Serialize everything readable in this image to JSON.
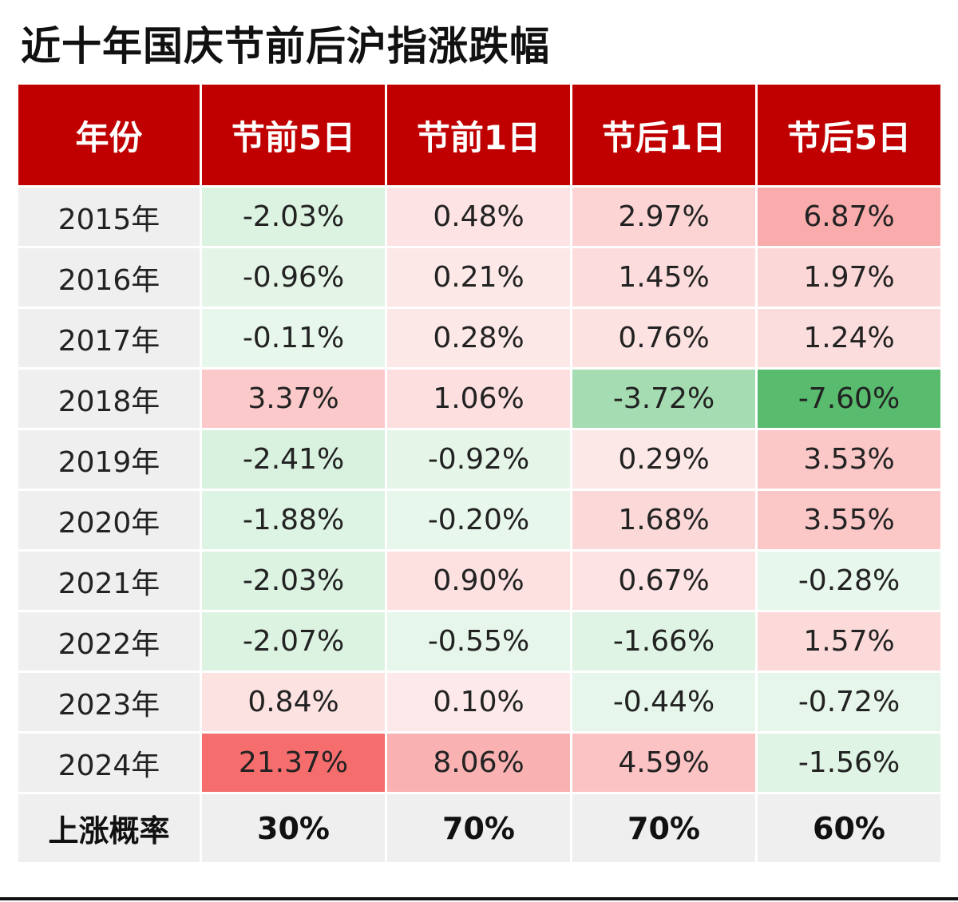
{
  "title": "近十年国庆节前后沪指涨跌幅",
  "headers": [
    "年份",
    "节前5日",
    "节前1日",
    "节后1日",
    "节后5日"
  ],
  "rows": [
    {
      "year": "2015年",
      "values": [
        "-2.03%",
        "0.48%",
        "2.97%",
        "6.87%"
      ],
      "colors": [
        "#dcf3e2",
        "#fde3e3",
        "#fcd4d4",
        "#faabab"
      ]
    },
    {
      "year": "2016年",
      "values": [
        "-0.96%",
        "0.21%",
        "1.45%",
        "1.97%"
      ],
      "colors": [
        "#e4f5e8",
        "#fde8e8",
        "#fcdcdc",
        "#fcd7d7"
      ]
    },
    {
      "year": "2017年",
      "values": [
        "-0.11%",
        "0.28%",
        "0.76%",
        "1.24%"
      ],
      "colors": [
        "#e8f7ec",
        "#fde8e8",
        "#fde2e2",
        "#fcdddd"
      ]
    },
    {
      "year": "2018年",
      "values": [
        "3.37%",
        "1.06%",
        "-3.72%",
        "-7.60%"
      ],
      "colors": [
        "#fbc9c9",
        "#fddfdf",
        "#a5dcb2",
        "#58bb6d"
      ]
    },
    {
      "year": "2019年",
      "values": [
        "-2.41%",
        "-0.92%",
        "0.29%",
        "3.53%"
      ],
      "colors": [
        "#d9f1df",
        "#e5f6e9",
        "#fde8e8",
        "#fbc7c7"
      ]
    },
    {
      "year": "2020年",
      "values": [
        "-1.88%",
        "-0.20%",
        "1.68%",
        "3.55%"
      ],
      "colors": [
        "#ddf3e3",
        "#e8f7ec",
        "#fcd9d9",
        "#fbc7c7"
      ]
    },
    {
      "year": "2021年",
      "values": [
        "-2.03%",
        "0.90%",
        "0.67%",
        "-0.28%"
      ],
      "colors": [
        "#dcf3e2",
        "#fde1e1",
        "#fde3e3",
        "#e8f7ec"
      ]
    },
    {
      "year": "2022年",
      "values": [
        "-2.07%",
        "-0.55%",
        "-1.66%",
        "1.57%"
      ],
      "colors": [
        "#dcf3e2",
        "#e6f6ea",
        "#dff4e4",
        "#fcdada"
      ]
    },
    {
      "year": "2023年",
      "values": [
        "0.84%",
        "0.10%",
        "-0.44%",
        "-0.72%"
      ],
      "colors": [
        "#fde2e2",
        "#fde9e9",
        "#e7f6eb",
        "#e6f6ea"
      ]
    },
    {
      "year": "2024年",
      "values": [
        "21.37%",
        "8.06%",
        "4.59%",
        "-1.56%"
      ],
      "colors": [
        "#f56d6d",
        "#f9b1b1",
        "#fbc3c3",
        "#e0f4e5"
      ]
    }
  ],
  "summary": {
    "label": "上涨概率",
    "values": [
      "30%",
      "70%",
      "70%",
      "60%"
    ]
  }
}
